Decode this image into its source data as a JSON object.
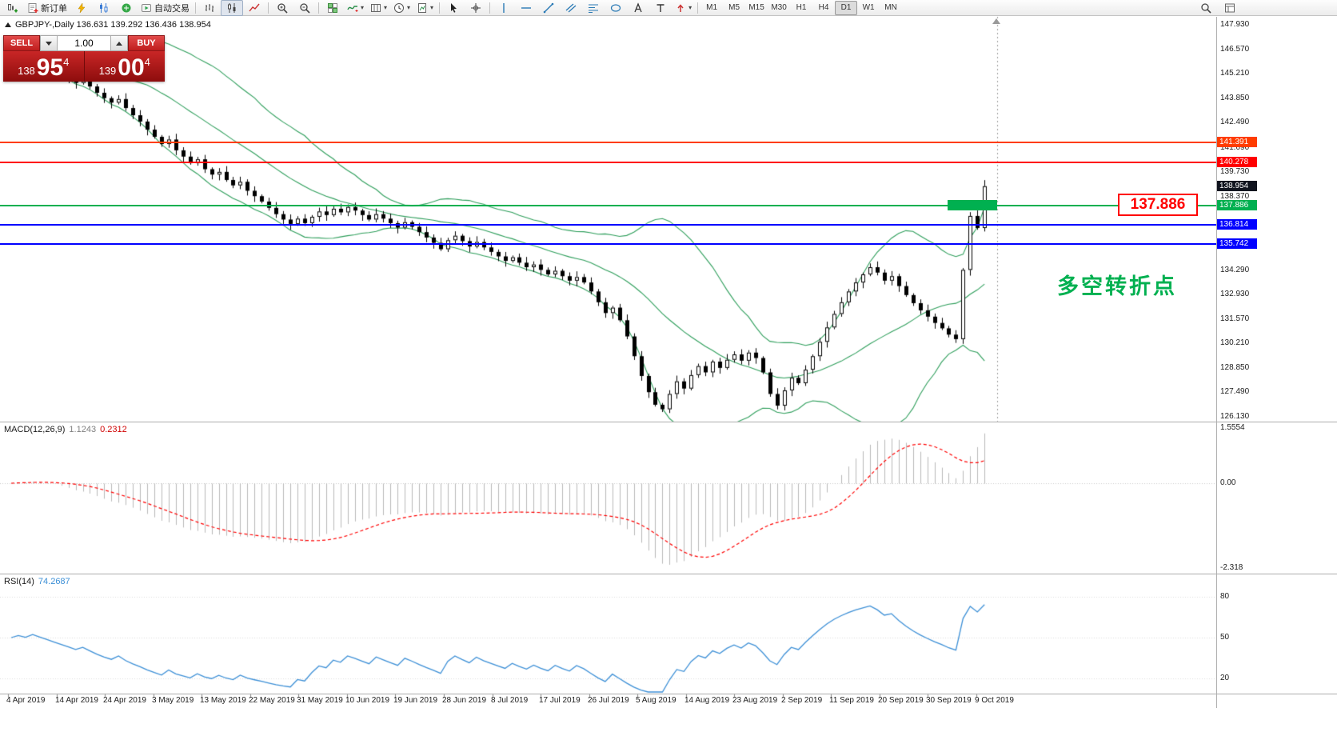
{
  "toolbar": {
    "caret_glyph": "▾",
    "buttons": [
      {
        "icon": "new-chart-icon",
        "name": "new-chart"
      },
      {
        "icon": "new-order-icon",
        "name": "new-order",
        "label": "新订单"
      },
      {
        "icon": "metaeditor-icon",
        "name": "metaeditor"
      },
      {
        "icon": "market-watch-icon",
        "name": "market-watch"
      },
      {
        "icon": "navigator-icon",
        "name": "navigator"
      },
      {
        "icon": "autotrade-icon",
        "name": "auto-trading",
        "label": "自动交易"
      },
      {
        "sep": true
      },
      {
        "icon": "bar-chart-icon",
        "name": "bar-chart-mode"
      },
      {
        "icon": "candlestick-icon",
        "name": "candlestick-mode",
        "active": true
      },
      {
        "icon": "line-chart-icon",
        "name": "line-chart-mode"
      },
      {
        "sep": true
      },
      {
        "icon": "zoom-in-icon",
        "name": "zoom-in"
      },
      {
        "icon": "zoom-out-icon",
        "name": "zoom-out"
      },
      {
        "sep": true
      },
      {
        "icon": "tile-windows-icon",
        "name": "tile-windows"
      },
      {
        "icon": "indicators-icon",
        "name": "indicators-menu",
        "caret": true
      },
      {
        "icon": "periods-icon",
        "name": "periods-menu",
        "caret": true
      },
      {
        "icon": "clock-icon",
        "name": "timeframe-menu",
        "caret": true
      },
      {
        "icon": "templates-icon",
        "name": "templates-menu",
        "caret": true
      },
      {
        "sep": true
      },
      {
        "icon": "cursor-icon",
        "name": "cursor-tool"
      },
      {
        "icon": "crosshair-icon",
        "name": "crosshair-tool"
      },
      {
        "sep": true
      },
      {
        "icon": "vline-icon",
        "name": "vertical-line-tool"
      },
      {
        "icon": "hline-icon",
        "name": "horizontal-line-tool"
      },
      {
        "icon": "trendline-icon",
        "name": "trendline-tool"
      },
      {
        "icon": "channel-icon",
        "name": "channel-tool"
      },
      {
        "icon": "fibo-icon",
        "name": "fibonacci-tool"
      },
      {
        "icon": "shapes-icon",
        "name": "shapes-tool"
      },
      {
        "icon": "text-icon",
        "name": "text-tool"
      },
      {
        "icon": "label-icon",
        "name": "label-tool"
      },
      {
        "icon": "arrows-icon",
        "name": "arrows-tool",
        "caret": true
      },
      {
        "sep": true
      }
    ],
    "timeframes": [
      "M1",
      "M5",
      "M15",
      "M30",
      "H1",
      "H4",
      "D1",
      "W1",
      "MN"
    ],
    "active_timeframe": "D1",
    "right_buttons": [
      {
        "icon": "search-icon",
        "name": "search"
      },
      {
        "icon": "data-window-icon",
        "name": "data-window"
      }
    ]
  },
  "chart_header": {
    "info_line": "GBPJPY-,Daily 136.631 139.292 136.436 138.954"
  },
  "trade_panel": {
    "sell_label": "SELL",
    "buy_label": "BUY",
    "volume": "1.00",
    "sell_price": {
      "small": "138",
      "big": "95",
      "sup": "4"
    },
    "buy_price": {
      "small": "139",
      "big": "00",
      "sup": "4"
    }
  },
  "annotations": {
    "price_box": "137.886",
    "turning_point": "多空转折点"
  },
  "price_scale": {
    "labels": [
      "147.930",
      "146.570",
      "145.210",
      "143.850",
      "142.490",
      "141.090",
      "139.730",
      "138.370",
      "134.290",
      "132.930",
      "131.570",
      "130.210",
      "128.850",
      "127.490",
      "126.130"
    ]
  },
  "levels": [
    {
      "name": "resistance-141-391",
      "price": 141.391,
      "label": "141.391",
      "color": "#ff3c00",
      "thickness": 2,
      "line": true
    },
    {
      "name": "resistance-140-278",
      "price": 140.278,
      "label": "140.278",
      "color": "#ff0000",
      "thickness": 2,
      "line": true
    },
    {
      "name": "current-price",
      "price": 138.954,
      "label": "138.954",
      "color": "#10141e",
      "thickness": 1,
      "line": false
    },
    {
      "name": "pivot-137-886",
      "price": 137.886,
      "label": "137.886",
      "color": "#00b050",
      "thickness": 2,
      "line": true
    },
    {
      "name": "support-136-814",
      "price": 136.814,
      "label": "136.814",
      "color": "#0000ff",
      "thickness": 2,
      "line": true
    },
    {
      "name": "support-135-742",
      "price": 135.742,
      "label": "135.742",
      "color": "#0000ff",
      "thickness": 2,
      "line": true
    }
  ],
  "macd_panel": {
    "name": "MACD(12,26,9)",
    "value_main": "1.1243",
    "value_signal": "0.2312",
    "scale_max": "1.5554",
    "scale_zero": "0.00",
    "scale_min": "-2.318"
  },
  "rsi_panel": {
    "name": "RSI(14)",
    "value": "74.2687",
    "scale": [
      "80",
      "50",
      "20"
    ]
  },
  "date_axis": [
    "4 Apr 2019",
    "14 Apr 2019",
    "24 Apr 2019",
    "3 May 2019",
    "13 May 2019",
    "22 May 2019",
    "31 May 2019",
    "10 Jun 2019",
    "19 Jun 2019",
    "28 Jun 2019",
    "8 Jul 2019",
    "17 Jul 2019",
    "26 Jul 2019",
    "5 Aug 2019",
    "14 Aug 2019",
    "23 Aug 2019",
    "2 Sep 2019",
    "11 Sep 2019",
    "20 Sep 2019",
    "30 Sep 2019",
    "9 Oct 2019"
  ],
  "colors": {
    "bollinger": "#2e9e5b",
    "bull_candle": "#ffffff",
    "bear_candle": "#000000",
    "macd_histogram": "#b8b8b8",
    "macd_signal": "#ff0000",
    "rsi_line": "#3c8fd6",
    "level_green": "#00b050",
    "level_blue": "#0000ff",
    "level_red": "#ff0000",
    "annotation_red": "#ff0000",
    "trade_panel_red": "#c92626"
  },
  "chart_data": {
    "type": "candlestick",
    "symbol": "GBPJPY-",
    "period": "Daily",
    "last_bar": {
      "open": 136.631,
      "high": 139.292,
      "low": 136.436,
      "close": 138.954
    },
    "ylim": [
      126.13,
      147.93
    ],
    "x_label_dates": true,
    "overlays": [
      {
        "name": "Bollinger Bands",
        "period": 20,
        "deviation": 2
      }
    ],
    "horizontal_levels": [
      141.391,
      140.278,
      137.886,
      136.814,
      135.742
    ],
    "indicators": [
      {
        "name": "MACD",
        "params": "12,26,9",
        "main": 1.1243,
        "signal": 0.2312,
        "range": [
          -2.318,
          1.5554
        ]
      },
      {
        "name": "RSI",
        "params": "14",
        "value": 74.2687,
        "levels": [
          80,
          50,
          20
        ]
      }
    ],
    "closes": [
      145.85,
      146.1,
      145.9,
      146.2,
      145.95,
      145.7,
      145.45,
      145.2,
      144.95,
      144.7,
      144.85,
      144.5,
      144.15,
      143.85,
      143.6,
      143.8,
      143.3,
      142.9,
      142.55,
      142.1,
      141.7,
      141.3,
      141.55,
      140.95,
      140.6,
      140.25,
      140.45,
      139.9,
      139.6,
      139.75,
      139.3,
      139.0,
      139.2,
      138.7,
      138.4,
      138.1,
      137.75,
      137.4,
      137.1,
      136.85,
      137.15,
      136.9,
      137.25,
      137.55,
      137.35,
      137.7,
      137.5,
      137.8,
      137.6,
      137.35,
      137.1,
      137.4,
      137.15,
      136.9,
      136.65,
      136.95,
      136.7,
      136.4,
      136.1,
      135.8,
      135.45,
      135.95,
      136.2,
      135.9,
      135.6,
      135.85,
      135.55,
      135.3,
      135.05,
      134.8,
      135.0,
      134.7,
      134.45,
      134.6,
      134.3,
      134.05,
      134.25,
      133.95,
      133.7,
      133.9,
      133.6,
      133.1,
      132.5,
      131.9,
      132.2,
      131.5,
      130.6,
      129.5,
      128.4,
      127.5,
      126.8,
      126.55,
      127.4,
      128.1,
      127.7,
      128.45,
      128.95,
      128.6,
      129.2,
      128.85,
      129.3,
      129.6,
      129.25,
      129.7,
      129.4,
      128.6,
      127.4,
      126.75,
      127.6,
      128.3,
      128.0,
      128.75,
      129.5,
      130.3,
      131.1,
      131.85,
      132.5,
      133.1,
      133.6,
      134.05,
      134.45,
      134.15,
      133.7,
      133.95,
      133.4,
      132.9,
      132.45,
      132.05,
      131.7,
      131.35,
      131.05,
      130.7,
      130.45,
      134.3,
      137.3,
      136.63,
      138.954
    ]
  }
}
